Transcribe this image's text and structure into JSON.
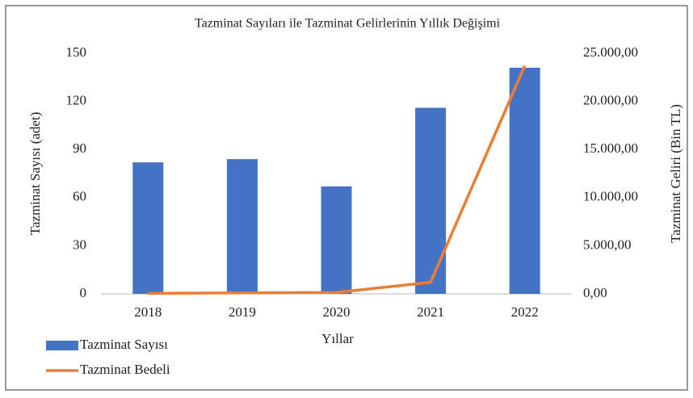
{
  "chart_data": {
    "type": "bar_line",
    "title": "Tazminat Sayıları ile Tazminat Gelirlerinin Yıllık Değişimi",
    "x_label": "Yıllar",
    "y_label": "Tazminat Sayısı (adet)",
    "y2_label": "Tazminat Geliri (Bin TL)",
    "categories": [
      "2018",
      "2019",
      "2020",
      "2021",
      "2022"
    ],
    "series": [
      {
        "name": "Tazminat Sayısı",
        "type": "bar",
        "color": "#4472c4",
        "values": [
          82,
          84,
          67,
          116,
          141
        ]
      },
      {
        "name": "Tazminat Bedeli",
        "type": "line",
        "axis": "y2",
        "color": "#ed7d31",
        "values": [
          50,
          100,
          150,
          1200,
          23700
        ]
      }
    ],
    "ylim": [
      0,
      150
    ],
    "yticks": [
      0,
      30,
      60,
      90,
      120,
      150
    ],
    "y2lim": [
      0,
      25000
    ],
    "y2ticks": [
      {
        "value": 0,
        "label": "0,00"
      },
      {
        "value": 5000,
        "label": "5.000,00"
      },
      {
        "value": 10000,
        "label": "10.000,00"
      },
      {
        "value": 15000,
        "label": "15.000,00"
      },
      {
        "value": 20000,
        "label": "20.000,00"
      },
      {
        "value": 25000,
        "label": "25.000,00"
      }
    ],
    "legend": "bottom-left"
  }
}
